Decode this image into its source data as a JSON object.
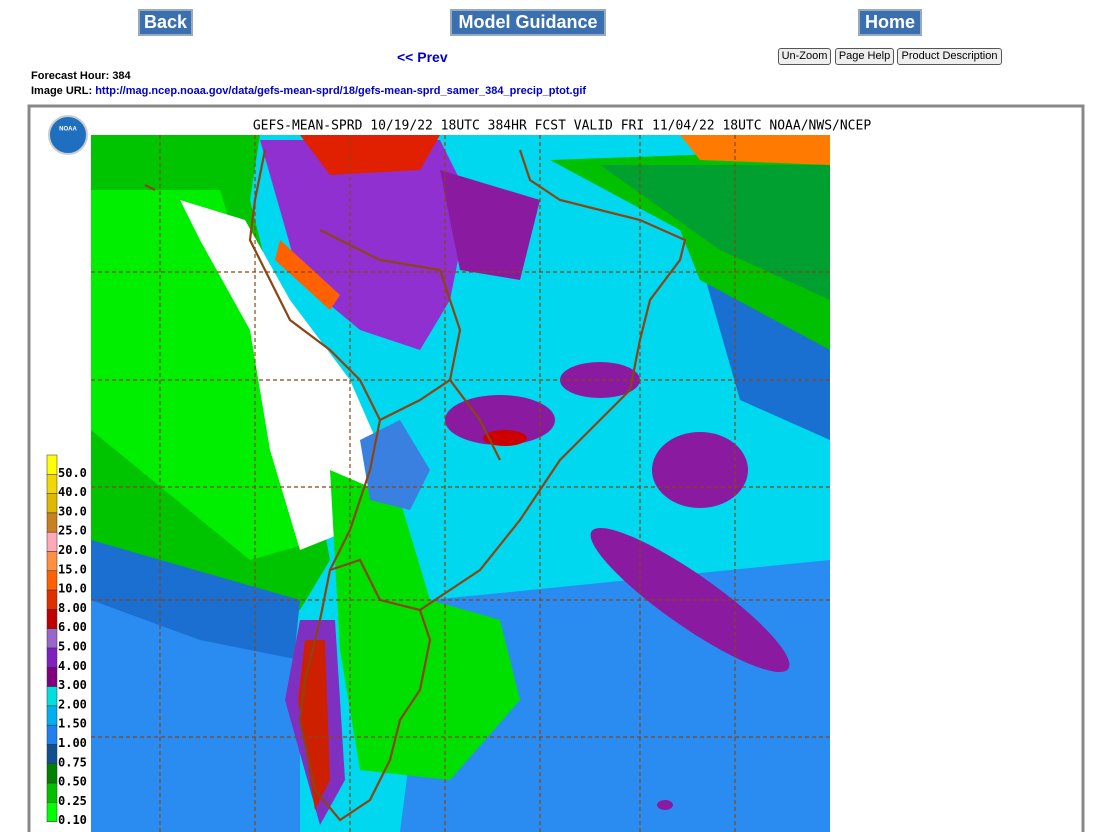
{
  "nav": {
    "back": "Back",
    "model_guidance": "Model Guidance",
    "home": "Home",
    "prev": "<< Prev"
  },
  "toolbar": {
    "unzoom": "Un-Zoom",
    "page_help": "Page Help",
    "product_description": "Product Description"
  },
  "info": {
    "forecast_hour_label": "Forecast Hour:",
    "forecast_hour": 384,
    "image_url_label": "Image URL:",
    "image_url": "http://mag.ncep.noaa.gov/data/gefs-mean-sprd/18/gefs-mean-sprd_samer_384_precip_ptot.gif"
  },
  "map": {
    "title": "GEFS-MEAN-SPRD 10/19/22 18UTC 384HR FCST VALID FRI 11/04/22 18UTC NOAA/NWS/NCEP",
    "logo": "NOAA",
    "legend": [
      "50.0",
      "40.0",
      "30.0",
      "25.0",
      "20.0",
      "15.0",
      "10.0",
      "8.00",
      "6.00",
      "5.00",
      "4.00",
      "3.00",
      "2.00",
      "1.50",
      "1.00",
      "0.75",
      "0.50",
      "0.25",
      "0.10"
    ]
  }
}
